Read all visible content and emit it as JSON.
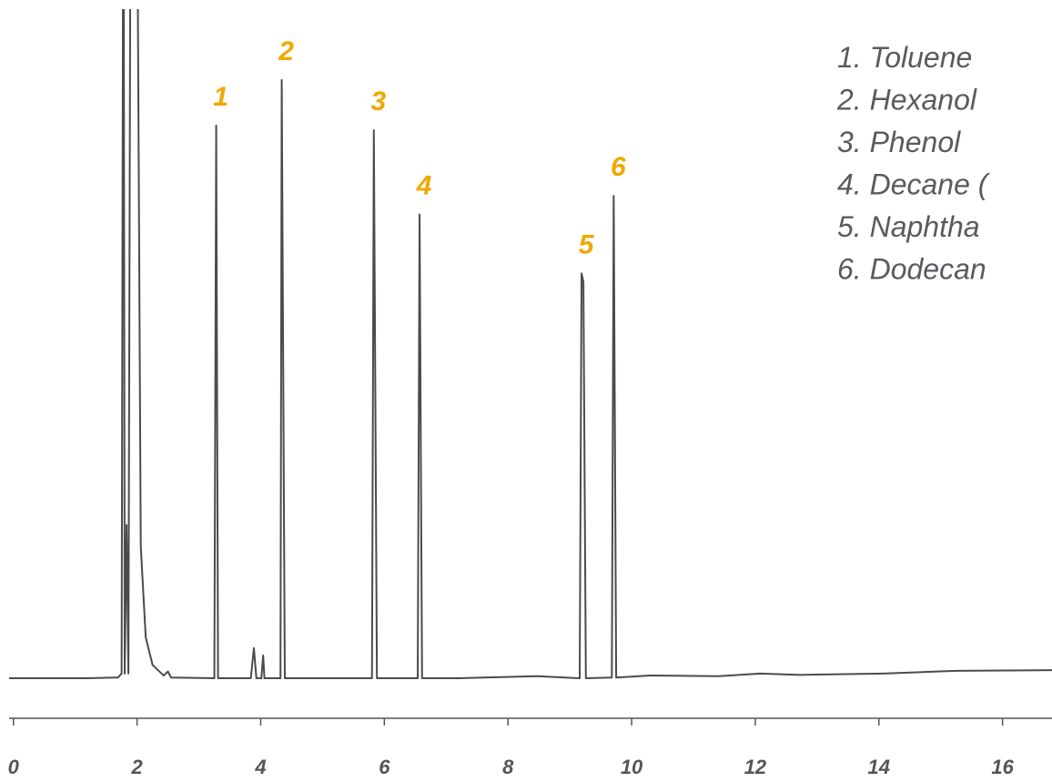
{
  "chart_data": {
    "type": "line",
    "x": [
      -0.07,
      1.18,
      1.69,
      1.75,
      1.78,
      1.8,
      1.83,
      1.86,
      1.9,
      1.99,
      2.06,
      2.14,
      2.25,
      2.43,
      2.5,
      2.55,
      3.25,
      3.28,
      3.31,
      3.84,
      3.89,
      3.93,
      4.01,
      4.04,
      4.06,
      4.32,
      4.34,
      4.39,
      5.8,
      5.83,
      5.88,
      6.54,
      6.57,
      6.61,
      7.22,
      8.47,
      9.16,
      9.19,
      9.22,
      9.26,
      9.68,
      9.71,
      9.75,
      10.31,
      11.41,
      12.08,
      12.74,
      14.07,
      15.24,
      16.8
    ],
    "series": [
      {
        "color": "#4a4a50",
        "values": [
          0,
          0,
          0.1,
          0.7,
          140,
          0.7,
          22.9,
          0.7,
          140,
          140,
          19.7,
          6.1,
          2.0,
          0.4,
          1.0,
          0.1,
          0,
          82.6,
          0,
          0,
          4.5,
          0,
          0,
          3.4,
          0,
          0,
          89.4,
          0,
          0,
          81.9,
          0,
          0,
          69.3,
          0,
          0,
          0.3,
          0,
          60.5,
          59.2,
          0,
          0.1,
          72.1,
          0.1,
          0.4,
          0.3,
          0.7,
          0.5,
          0.7,
          1.1,
          1.2
        ]
      }
    ],
    "xlim": [
      -0.07,
      16.8
    ],
    "xticks": [
      0,
      2,
      4,
      6,
      8,
      10,
      12,
      14,
      16
    ],
    "ylim": [
      0,
      100
    ],
    "peak_labels": [
      {
        "text": "1",
        "x": 3.28,
        "y": 82.6
      },
      {
        "text": "2",
        "x": 4.34,
        "y": 89.4
      },
      {
        "text": "3",
        "x": 5.83,
        "y": 81.9
      },
      {
        "text": "4",
        "x": 6.57,
        "y": 69.3
      },
      {
        "text": "5",
        "x": 9.19,
        "y": 60.5
      },
      {
        "text": "6",
        "x": 9.71,
        "y": 72.1
      }
    ],
    "peak_label_color": "#f0a800",
    "legend": [
      "1. Toluene",
      "2. Hexanol",
      "3. Phenol",
      "4. Decane (",
      "5. Naphtha",
      "6. Dodecan"
    ]
  }
}
